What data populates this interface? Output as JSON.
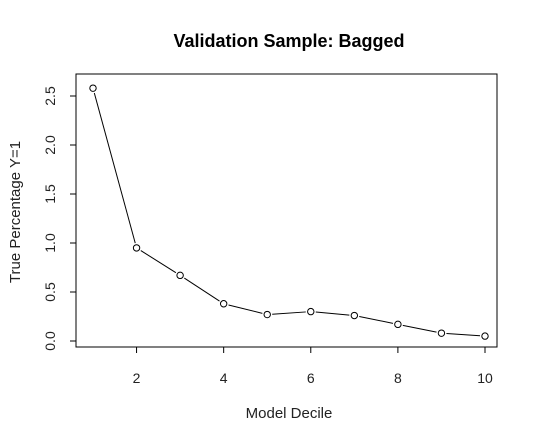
{
  "chart_data": {
    "type": "line",
    "title": "Validation Sample: Bagged",
    "xlabel": "Model Decile",
    "ylabel": "True Percentage Y=1",
    "x": [
      1,
      2,
      3,
      4,
      5,
      6,
      7,
      8,
      9,
      10
    ],
    "series": [
      {
        "values": [
          2.58,
          0.95,
          0.67,
          0.38,
          0.27,
          0.3,
          0.26,
          0.17,
          0.08,
          0.05
        ]
      }
    ],
    "xlim": [
      1,
      10
    ],
    "ylim": [
      0,
      2.5
    ],
    "xticks": [
      2,
      4,
      6,
      8,
      10
    ],
    "yticks": [
      0.0,
      0.5,
      1.0,
      1.5,
      2.0,
      2.5
    ],
    "xtick_labels": [
      "2",
      "4",
      "6",
      "8",
      "10"
    ],
    "ytick_labels": [
      "0.0",
      "0.5",
      "1.0",
      "1.5",
      "2.0",
      "2.5"
    ],
    "markers": "open-circle",
    "grid": false,
    "legend": "none"
  }
}
